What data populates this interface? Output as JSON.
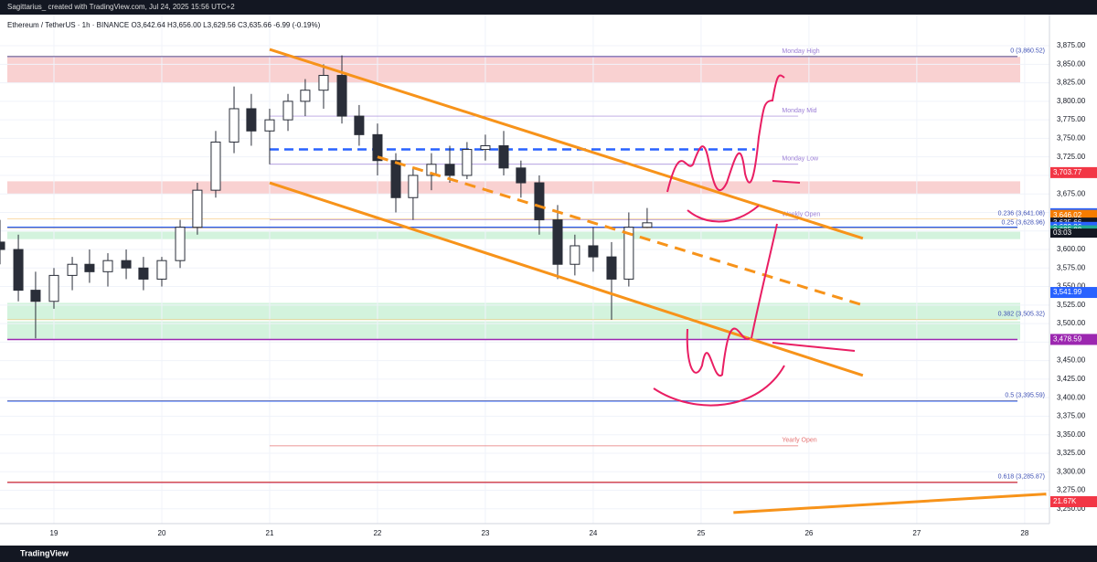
{
  "chart_data": {
    "type": "candlestick",
    "top_bar": "Sagittarius_ created with TradingView.com, Jul 24, 2025 15:56 UTC+2",
    "title": "Ethereum / TetherUS · 1h · BINANCE  O3,642.64 H3,656.00 L3,629.56 C3,635.66 -6.99 (-0.19%)",
    "footer": "TradingView",
    "xlim": [
      18.5,
      28.23
    ],
    "xticks": [
      19,
      20,
      21,
      22,
      23,
      24,
      25,
      26,
      27,
      28
    ],
    "ylim": [
      3230,
      3917
    ],
    "yticks": [
      {
        "value": 3250,
        "label": "3,250.00"
      },
      {
        "value": 3275,
        "label": "3,275.00"
      },
      {
        "value": 3300,
        "label": "3,300.00"
      },
      {
        "value": 3325,
        "label": "3,325.00"
      },
      {
        "value": 3350,
        "label": "3,350.00"
      },
      {
        "value": 3375,
        "label": "3,375.00"
      },
      {
        "value": 3400,
        "label": "3,400.00"
      },
      {
        "value": 3425,
        "label": "3,425.00"
      },
      {
        "value": 3450,
        "label": "3,450.00"
      },
      {
        "value": 3475,
        "label": "3,475.00"
      },
      {
        "value": 3500,
        "label": "3,500.00"
      },
      {
        "value": 3525,
        "label": "3,525.00"
      },
      {
        "value": 3550,
        "label": "3,550.00"
      },
      {
        "value": 3575,
        "label": "3,575.00"
      },
      {
        "value": 3600,
        "label": "3,600.00"
      },
      {
        "value": 3625,
        "label": "3,625.00"
      },
      {
        "value": 3650,
        "label": "3,650.00"
      },
      {
        "value": 3675,
        "label": "3,675.00"
      },
      {
        "value": 3700,
        "label": "3,700.00"
      },
      {
        "value": 3725,
        "label": "3,725.00"
      },
      {
        "value": 3750,
        "label": "3,750.00"
      },
      {
        "value": 3775,
        "label": "3,775.00"
      },
      {
        "value": 3800,
        "label": "3,800.00"
      },
      {
        "value": 3825,
        "label": "3,825.00"
      },
      {
        "value": 3850,
        "label": "3,850.00"
      },
      {
        "value": 3875,
        "label": "3,875.00"
      }
    ],
    "grid": true,
    "up_color": "#ffffff",
    "down_color": "#2a2e39",
    "x": [
      18.5,
      18.67,
      18.83,
      19.0,
      19.17,
      19.33,
      19.5,
      19.67,
      19.83,
      20.0,
      20.17,
      20.33,
      20.5,
      20.67,
      20.83,
      21.0,
      21.17,
      21.33,
      21.5,
      21.67,
      21.83,
      22.0,
      22.17,
      22.33,
      22.5,
      22.67,
      22.83,
      23.0,
      23.17,
      23.33,
      23.5,
      23.67,
      23.83,
      24.0,
      24.17,
      24.33,
      24.5
    ],
    "open": [
      3610,
      3600,
      3545,
      3530,
      3565,
      3580,
      3570,
      3585,
      3575,
      3560,
      3585,
      3630,
      3680,
      3745,
      3790,
      3760,
      3775,
      3800,
      3815,
      3835,
      3780,
      3755,
      3720,
      3670,
      3700,
      3715,
      3700,
      3735,
      3740,
      3710,
      3690,
      3640,
      3580,
      3605,
      3590,
      3560,
      3630
    ],
    "high": [
      3640,
      3620,
      3570,
      3575,
      3590,
      3600,
      3595,
      3600,
      3590,
      3590,
      3640,
      3690,
      3760,
      3820,
      3810,
      3790,
      3810,
      3830,
      3850,
      3862,
      3795,
      3770,
      3730,
      3710,
      3730,
      3740,
      3745,
      3755,
      3760,
      3720,
      3700,
      3660,
      3620,
      3630,
      3610,
      3650,
      3656
    ],
    "low": [
      3580,
      3530,
      3480,
      3520,
      3545,
      3555,
      3550,
      3560,
      3545,
      3550,
      3575,
      3620,
      3670,
      3730,
      3740,
      3715,
      3760,
      3780,
      3790,
      3770,
      3740,
      3700,
      3650,
      3640,
      3680,
      3690,
      3695,
      3720,
      3700,
      3670,
      3620,
      3560,
      3565,
      3570,
      3505,
      3550,
      3629
    ],
    "close": [
      3600,
      3545,
      3530,
      3565,
      3580,
      3570,
      3585,
      3575,
      3560,
      3585,
      3630,
      3680,
      3745,
      3790,
      3760,
      3775,
      3800,
      3815,
      3835,
      3780,
      3755,
      3720,
      3670,
      3700,
      3715,
      3700,
      3735,
      3740,
      3710,
      3690,
      3640,
      3580,
      3605,
      3590,
      3560,
      3630,
      3636
    ],
    "zones": [
      {
        "from": 3825,
        "to": 3860,
        "color": "#f7c5c5"
      },
      {
        "from": 3675,
        "to": 3692,
        "color": "#f7c5c5"
      },
      {
        "from": 3614,
        "to": 3624,
        "color": "#c8f0d4"
      },
      {
        "from": 3505,
        "to": 3528,
        "color": "#c8f0d4"
      },
      {
        "from": 3478,
        "to": 3503,
        "color": "#c8f0d4"
      }
    ],
    "horizontal_lines": [
      {
        "value": 3860.52,
        "color": "#5b6ee1",
        "dashed": false
      },
      {
        "value": 3735,
        "color": "#2962ff",
        "dashed": true
      },
      {
        "value": 3629.86,
        "color": "#2962ff",
        "dashed": false
      },
      {
        "value": 3395.59,
        "color": "#2962ff",
        "dashed": false
      },
      {
        "value": 3478.59,
        "color": "#9c27b0",
        "dashed": false
      },
      {
        "value": 3285.87,
        "color": "#c2185b",
        "dashed": false
      }
    ],
    "fib_levels": [
      {
        "value": 3860.52,
        "label": "0 (3,860.52)"
      },
      {
        "value": 3641.08,
        "label": "0.236 (3,641.08)"
      },
      {
        "value": 3628.96,
        "label": "0.25 (3,628.96)"
      },
      {
        "value": 3505.32,
        "label": "0.382 (3,505.32)"
      },
      {
        "value": 3395.59,
        "label": "0.5 (3,395.59)"
      },
      {
        "value": 3285.87,
        "label": "0.618 (3,285.87)"
      }
    ],
    "session_levels": [
      {
        "value": 3860,
        "label": "Monday High",
        "color": "#9c7fd6"
      },
      {
        "value": 3780,
        "label": "Monday Mid",
        "color": "#9c7fd6"
      },
      {
        "value": 3715,
        "label": "Monday Low",
        "color": "#9c7fd6"
      },
      {
        "value": 3640,
        "label": "Weekly Open",
        "color": "#9c7fd6"
      },
      {
        "value": 3335,
        "label": "Yearly Open",
        "color": "#e57373"
      }
    ],
    "trendlines": [
      {
        "x": [
          21.0,
          26.5
        ],
        "y": [
          3870,
          3615
        ],
        "color": "#f7931a",
        "dashed": false
      },
      {
        "x": [
          21.0,
          26.5
        ],
        "y": [
          3690,
          3430
        ],
        "color": "#f7931a",
        "dashed": false
      },
      {
        "x": [
          22.0,
          26.5
        ],
        "y": [
          3725,
          3525
        ],
        "color": "#f7931a",
        "dashed": true
      },
      {
        "x": [
          25.3,
          28.2
        ],
        "y": [
          3245,
          3270
        ],
        "color": "#f7931a",
        "dashed": false
      }
    ],
    "price_labels": [
      {
        "value": 3703.77,
        "label": "3,703.77",
        "color": "#f23645"
      },
      {
        "value": 3648.31,
        "label": "3,648.31",
        "color": "#2962ff"
      },
      {
        "value": 3646.02,
        "label": "3,646.02",
        "color": "#f57c00"
      },
      {
        "value": 3635.66,
        "label": "3,635.66",
        "color": "#131722"
      },
      {
        "value": 3629.86,
        "label": "3,629.86",
        "color": "#2962ff"
      },
      {
        "value": 3625.22,
        "label": "3,625.22",
        "color": "#22ab94"
      },
      {
        "value": 3541.99,
        "label": "3,541.99",
        "color": "#2962ff"
      },
      {
        "value": 3478.59,
        "label": "3,478.59",
        "color": "#9c27b0"
      }
    ],
    "countdown": "03:03",
    "volume_label": "21.67K"
  }
}
